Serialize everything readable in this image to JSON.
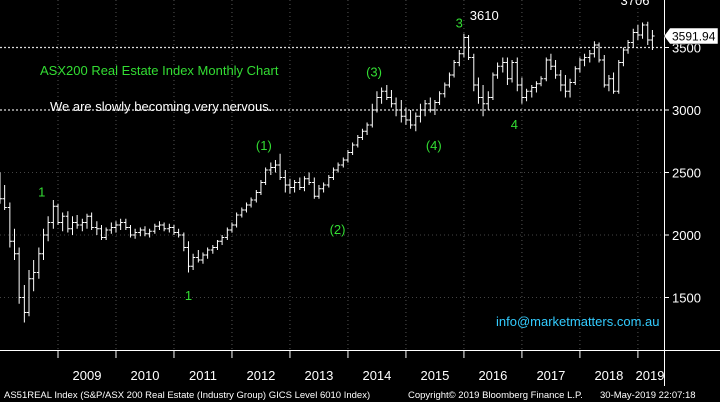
{
  "chart_data": {
    "type": "bar",
    "style": "ohlc",
    "title": "ASX200 Real Estate Index Monthly Chart",
    "subtitle": "We are slowly becoming very nervous.",
    "xlabel": "",
    "ylabel": "",
    "y_ticks": [
      1500,
      2000,
      2500,
      3000,
      3500
    ],
    "ylim": [
      1080,
      3880
    ],
    "x_ticks": [
      "2009",
      "2010",
      "2011",
      "2012",
      "2013",
      "2014",
      "2015",
      "2016",
      "2017",
      "2018",
      "2019"
    ],
    "xlim": [
      2008.0,
      2019.45
    ],
    "last_price": "3591.94",
    "reference_lines": [
      3500,
      3000
    ],
    "watermark": "info@marketmatters.com.au",
    "annotations": [
      {
        "label": "1",
        "x": 2008.72,
        "y": 2310,
        "color": "#33dd33"
      },
      {
        "label": "1",
        "x": 2011.25,
        "y": 1480,
        "color": "#33dd33"
      },
      {
        "label": "(1)",
        "x": 2012.55,
        "y": 2680,
        "color": "#33dd33"
      },
      {
        "label": "(2)",
        "x": 2013.82,
        "y": 2010,
        "color": "#33dd33"
      },
      {
        "label": "(3)",
        "x": 2014.45,
        "y": 3270,
        "color": "#33dd33"
      },
      {
        "label": "(4)",
        "x": 2015.48,
        "y": 2680,
        "color": "#33dd33"
      },
      {
        "label": "3",
        "x": 2015.92,
        "y": 3660,
        "color": "#33dd33"
      },
      {
        "label": "3610",
        "x": 2016.35,
        "y": 3720,
        "color": "#ffffff"
      },
      {
        "label": "4",
        "x": 2016.87,
        "y": 2850,
        "color": "#33dd33"
      },
      {
        "label": "3706",
        "x": 2018.95,
        "y": 3840,
        "color": "#ffffff"
      }
    ],
    "series": [
      {
        "values": [
          [
            2008.0,
            2390,
            2500,
            2250,
            2290
          ],
          [
            2008.08,
            2290,
            2400,
            2200,
            2220
          ],
          [
            2008.17,
            2220,
            2260,
            1900,
            1950
          ],
          [
            2008.25,
            1950,
            2050,
            1800,
            1850
          ],
          [
            2008.33,
            1850,
            1900,
            1450,
            1500
          ],
          [
            2008.42,
            1500,
            1600,
            1300,
            1380
          ],
          [
            2008.5,
            1380,
            1720,
            1350,
            1650
          ],
          [
            2008.58,
            1650,
            1800,
            1550,
            1700
          ],
          [
            2008.67,
            1700,
            1900,
            1650,
            1850
          ],
          [
            2008.75,
            1850,
            2050,
            1800,
            2000
          ],
          [
            2008.83,
            2000,
            2150,
            1950,
            2100
          ],
          [
            2008.92,
            2100,
            2280,
            2050,
            2230
          ],
          [
            2009.0,
            2230,
            2250,
            2080,
            2100
          ],
          [
            2009.08,
            2100,
            2180,
            2030,
            2150
          ],
          [
            2009.17,
            2150,
            2190,
            2020,
            2050
          ],
          [
            2009.25,
            2050,
            2150,
            2000,
            2100
          ],
          [
            2009.33,
            2100,
            2160,
            2050,
            2080
          ],
          [
            2009.42,
            2080,
            2130,
            2030,
            2100
          ],
          [
            2009.5,
            2100,
            2170,
            2050,
            2150
          ],
          [
            2009.58,
            2150,
            2180,
            2040,
            2060
          ],
          [
            2009.67,
            2060,
            2110,
            2000,
            2050
          ],
          [
            2009.75,
            2050,
            2080,
            1960,
            1980
          ],
          [
            2009.83,
            1980,
            2060,
            1960,
            2040
          ],
          [
            2009.92,
            2040,
            2100,
            2010,
            2060
          ],
          [
            2010.0,
            2060,
            2110,
            2020,
            2080
          ],
          [
            2010.08,
            2080,
            2130,
            2040,
            2100
          ],
          [
            2010.17,
            2100,
            2130,
            2040,
            2060
          ],
          [
            2010.25,
            2060,
            2080,
            1980,
            2000
          ],
          [
            2010.33,
            2000,
            2050,
            1970,
            2020
          ],
          [
            2010.42,
            2020,
            2060,
            1990,
            2040
          ],
          [
            2010.5,
            2040,
            2070,
            1990,
            2010
          ],
          [
            2010.58,
            2010,
            2050,
            1980,
            2030
          ],
          [
            2010.67,
            2030,
            2090,
            2010,
            2070
          ],
          [
            2010.75,
            2070,
            2110,
            2040,
            2080
          ],
          [
            2010.83,
            2080,
            2100,
            2030,
            2050
          ],
          [
            2010.92,
            2050,
            2090,
            2020,
            2060
          ],
          [
            2011.0,
            2060,
            2080,
            2000,
            2020
          ],
          [
            2011.08,
            2020,
            2050,
            1980,
            2000
          ],
          [
            2011.17,
            2000,
            2020,
            1870,
            1900
          ],
          [
            2011.25,
            1900,
            1950,
            1700,
            1750
          ],
          [
            2011.33,
            1750,
            1850,
            1720,
            1820
          ],
          [
            2011.42,
            1820,
            1880,
            1780,
            1800
          ],
          [
            2011.5,
            1800,
            1860,
            1770,
            1840
          ],
          [
            2011.58,
            1840,
            1900,
            1810,
            1880
          ],
          [
            2011.67,
            1880,
            1920,
            1850,
            1900
          ],
          [
            2011.75,
            1900,
            1960,
            1880,
            1950
          ],
          [
            2011.83,
            1950,
            2000,
            1920,
            1980
          ],
          [
            2011.92,
            1980,
            2060,
            1960,
            2040
          ],
          [
            2012.0,
            2040,
            2100,
            2020,
            2080
          ],
          [
            2012.08,
            2080,
            2180,
            2060,
            2160
          ],
          [
            2012.17,
            2160,
            2220,
            2140,
            2200
          ],
          [
            2012.25,
            2200,
            2260,
            2180,
            2240
          ],
          [
            2012.33,
            2240,
            2300,
            2220,
            2280
          ],
          [
            2012.42,
            2280,
            2360,
            2260,
            2340
          ],
          [
            2012.5,
            2340,
            2440,
            2320,
            2420
          ],
          [
            2012.58,
            2420,
            2540,
            2400,
            2520
          ],
          [
            2012.67,
            2520,
            2580,
            2480,
            2540
          ],
          [
            2012.75,
            2540,
            2600,
            2500,
            2560
          ],
          [
            2012.83,
            2560,
            2650,
            2440,
            2460
          ],
          [
            2012.92,
            2460,
            2520,
            2340,
            2400
          ],
          [
            2013.0,
            2400,
            2450,
            2330,
            2380
          ],
          [
            2013.08,
            2380,
            2440,
            2340,
            2420
          ],
          [
            2013.17,
            2420,
            2460,
            2360,
            2380
          ],
          [
            2013.25,
            2380,
            2470,
            2350,
            2450
          ],
          [
            2013.33,
            2450,
            2500,
            2400,
            2420
          ],
          [
            2013.42,
            2420,
            2460,
            2290,
            2310
          ],
          [
            2013.5,
            2310,
            2400,
            2290,
            2370
          ],
          [
            2013.58,
            2370,
            2420,
            2340,
            2400
          ],
          [
            2013.67,
            2400,
            2480,
            2380,
            2460
          ],
          [
            2013.75,
            2460,
            2540,
            2440,
            2520
          ],
          [
            2013.83,
            2520,
            2580,
            2500,
            2560
          ],
          [
            2013.92,
            2560,
            2620,
            2540,
            2600
          ],
          [
            2014.0,
            2600,
            2680,
            2580,
            2660
          ],
          [
            2014.08,
            2660,
            2740,
            2640,
            2720
          ],
          [
            2014.17,
            2720,
            2800,
            2700,
            2780
          ],
          [
            2014.25,
            2780,
            2850,
            2760,
            2830
          ],
          [
            2014.33,
            2830,
            2900,
            2800,
            2880
          ],
          [
            2014.42,
            2880,
            3050,
            2860,
            3000
          ],
          [
            2014.5,
            3000,
            3150,
            2980,
            3100
          ],
          [
            2014.58,
            3100,
            3180,
            3050,
            3150
          ],
          [
            2014.67,
            3150,
            3200,
            3080,
            3100
          ],
          [
            2014.75,
            3100,
            3160,
            3020,
            3050
          ],
          [
            2014.83,
            3050,
            3100,
            2950,
            3000
          ],
          [
            2014.92,
            3000,
            3080,
            2900,
            2950
          ],
          [
            2015.0,
            2950,
            3020,
            2880,
            2920
          ],
          [
            2015.08,
            2920,
            3000,
            2850,
            2880
          ],
          [
            2015.17,
            2880,
            2980,
            2830,
            2950
          ],
          [
            2015.25,
            2950,
            3050,
            2900,
            3000
          ],
          [
            2015.33,
            3000,
            3080,
            2950,
            3050
          ],
          [
            2015.42,
            3050,
            3100,
            2980,
            3000
          ],
          [
            2015.5,
            3000,
            3080,
            2960,
            3060
          ],
          [
            2015.58,
            3060,
            3150,
            3040,
            3130
          ],
          [
            2015.67,
            3130,
            3220,
            3100,
            3200
          ],
          [
            2015.75,
            3200,
            3300,
            3180,
            3280
          ],
          [
            2015.83,
            3280,
            3400,
            3260,
            3380
          ],
          [
            2015.92,
            3380,
            3480,
            3350,
            3450
          ],
          [
            2016.0,
            3450,
            3610,
            3420,
            3580
          ],
          [
            2016.08,
            3580,
            3600,
            3400,
            3420
          ],
          [
            2016.17,
            3420,
            3450,
            3150,
            3200
          ],
          [
            2016.25,
            3200,
            3260,
            3050,
            3100
          ],
          [
            2016.33,
            3100,
            3200,
            2950,
            3050
          ],
          [
            2016.42,
            3050,
            3150,
            3000,
            3100
          ],
          [
            2016.5,
            3100,
            3300,
            3080,
            3280
          ],
          [
            2016.58,
            3280,
            3380,
            3250,
            3350
          ],
          [
            2016.67,
            3350,
            3420,
            3300,
            3380
          ],
          [
            2016.75,
            3380,
            3420,
            3200,
            3250
          ],
          [
            2016.83,
            3250,
            3400,
            3220,
            3380
          ],
          [
            2016.92,
            3380,
            3420,
            3150,
            3200
          ],
          [
            2017.0,
            3200,
            3260,
            3050,
            3100
          ],
          [
            2017.08,
            3100,
            3170,
            3070,
            3150
          ],
          [
            2017.17,
            3150,
            3200,
            3100,
            3180
          ],
          [
            2017.25,
            3180,
            3230,
            3140,
            3210
          ],
          [
            2017.33,
            3210,
            3270,
            3190,
            3250
          ],
          [
            2017.42,
            3250,
            3420,
            3230,
            3400
          ],
          [
            2017.5,
            3400,
            3450,
            3320,
            3350
          ],
          [
            2017.58,
            3350,
            3400,
            3250,
            3280
          ],
          [
            2017.67,
            3280,
            3320,
            3150,
            3200
          ],
          [
            2017.75,
            3200,
            3280,
            3100,
            3150
          ],
          [
            2017.83,
            3150,
            3250,
            3100,
            3220
          ],
          [
            2017.92,
            3220,
            3350,
            3200,
            3330
          ],
          [
            2018.0,
            3330,
            3420,
            3300,
            3400
          ],
          [
            2018.08,
            3400,
            3450,
            3350,
            3420
          ],
          [
            2018.17,
            3420,
            3480,
            3380,
            3450
          ],
          [
            2018.25,
            3450,
            3550,
            3420,
            3520
          ],
          [
            2018.33,
            3520,
            3540,
            3380,
            3400
          ],
          [
            2018.42,
            3400,
            3440,
            3180,
            3200
          ],
          [
            2018.5,
            3200,
            3280,
            3150,
            3250
          ],
          [
            2018.58,
            3250,
            3300,
            3130,
            3150
          ],
          [
            2018.67,
            3150,
            3400,
            3130,
            3380
          ],
          [
            2018.75,
            3380,
            3500,
            3350,
            3480
          ],
          [
            2018.83,
            3480,
            3560,
            3450,
            3540
          ],
          [
            2018.92,
            3540,
            3650,
            3500,
            3620
          ],
          [
            2019.0,
            3620,
            3680,
            3560,
            3600
          ],
          [
            2019.08,
            3600,
            3700,
            3570,
            3680
          ],
          [
            2019.17,
            3680,
            3706,
            3520,
            3560
          ],
          [
            2019.25,
            3560,
            3640,
            3480,
            3592
          ]
        ]
      }
    ]
  },
  "footer": {
    "left": "AS51REAL Index (S&P/ASX 200 Real Estate (Industry Group) GICS Level 6010 Index)",
    "mid": "Copyright© 2019 Bloomberg Finance L.P.",
    "right": "30-May-2019 22:07:18"
  },
  "colors": {
    "background": "#000000",
    "bars": "#ffffff",
    "annotation_green": "#33dd33",
    "watermark": "#33ccff",
    "price_box": "#ffffff"
  }
}
